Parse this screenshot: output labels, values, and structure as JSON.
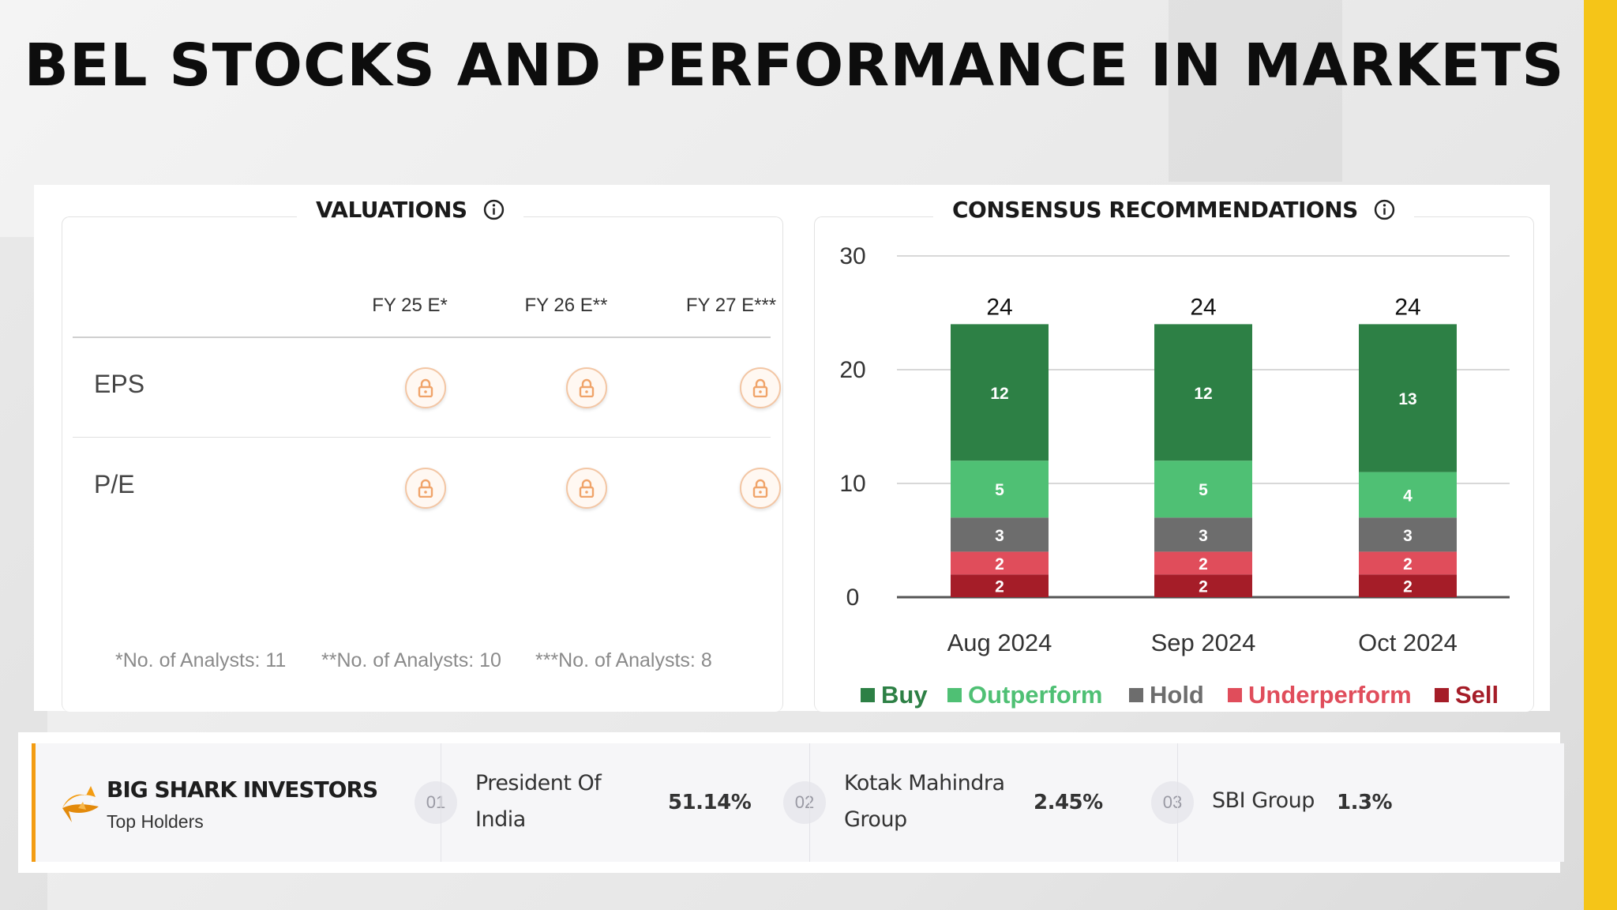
{
  "title": "BEL STOCKS AND PERFORMANCE IN MARKETS",
  "colors": {
    "accent_yellow": "#f5c518",
    "accent_orange": "#f39c12",
    "lock": "#f0a46a"
  },
  "valuations": {
    "title": "VALUATIONS",
    "columns": [
      "FY 25 E*",
      "FY 26 E**",
      "FY 27 E***"
    ],
    "rows": [
      {
        "label": "EPS",
        "values": [
          "locked",
          "locked",
          "locked"
        ]
      },
      {
        "label": "P/E",
        "values": [
          "locked",
          "locked",
          "locked"
        ]
      }
    ],
    "footnotes": [
      "*No. of Analysts: 11",
      "**No. of Analysts: 10",
      "***No. of Analysts: 8"
    ]
  },
  "consensus": {
    "title": "CONSENSUS RECOMMENDATIONS"
  },
  "chart_data": {
    "type": "bar",
    "stacked": true,
    "title": "CONSENSUS RECOMMENDATIONS",
    "categories": [
      "Aug 2024",
      "Sep 2024",
      "Oct 2024"
    ],
    "ylim": [
      0,
      30
    ],
    "yticks": [
      0,
      10,
      20,
      30
    ],
    "grid": true,
    "legend_position": "bottom",
    "totals": [
      24,
      24,
      24
    ],
    "series": [
      {
        "name": "Sell",
        "color": "#a51d28",
        "values": [
          2,
          2,
          2
        ]
      },
      {
        "name": "Underperform",
        "color": "#e04d5b",
        "values": [
          2,
          2,
          2
        ]
      },
      {
        "name": "Hold",
        "color": "#6d6d6d",
        "values": [
          3,
          3,
          3
        ]
      },
      {
        "name": "Outperform",
        "color": "#4fc074",
        "values": [
          5,
          5,
          4
        ]
      },
      {
        "name": "Buy",
        "color": "#2d8045",
        "values": [
          12,
          12,
          13
        ]
      }
    ],
    "legend_order": [
      "Buy",
      "Outperform",
      "Hold",
      "Underperform",
      "Sell"
    ]
  },
  "holders": {
    "title": "BIG SHARK INVESTORS",
    "subtitle": "Top Holders",
    "items": [
      {
        "rank": "01",
        "name_line1": "President Of",
        "name_line2": "India",
        "pct": "51.14%"
      },
      {
        "rank": "02",
        "name_line1": "Kotak Mahindra",
        "name_line2": "Group",
        "pct": "2.45%"
      },
      {
        "rank": "03",
        "name_line1": "SBI Group",
        "name_line2": "",
        "pct": "1.3%"
      }
    ]
  }
}
